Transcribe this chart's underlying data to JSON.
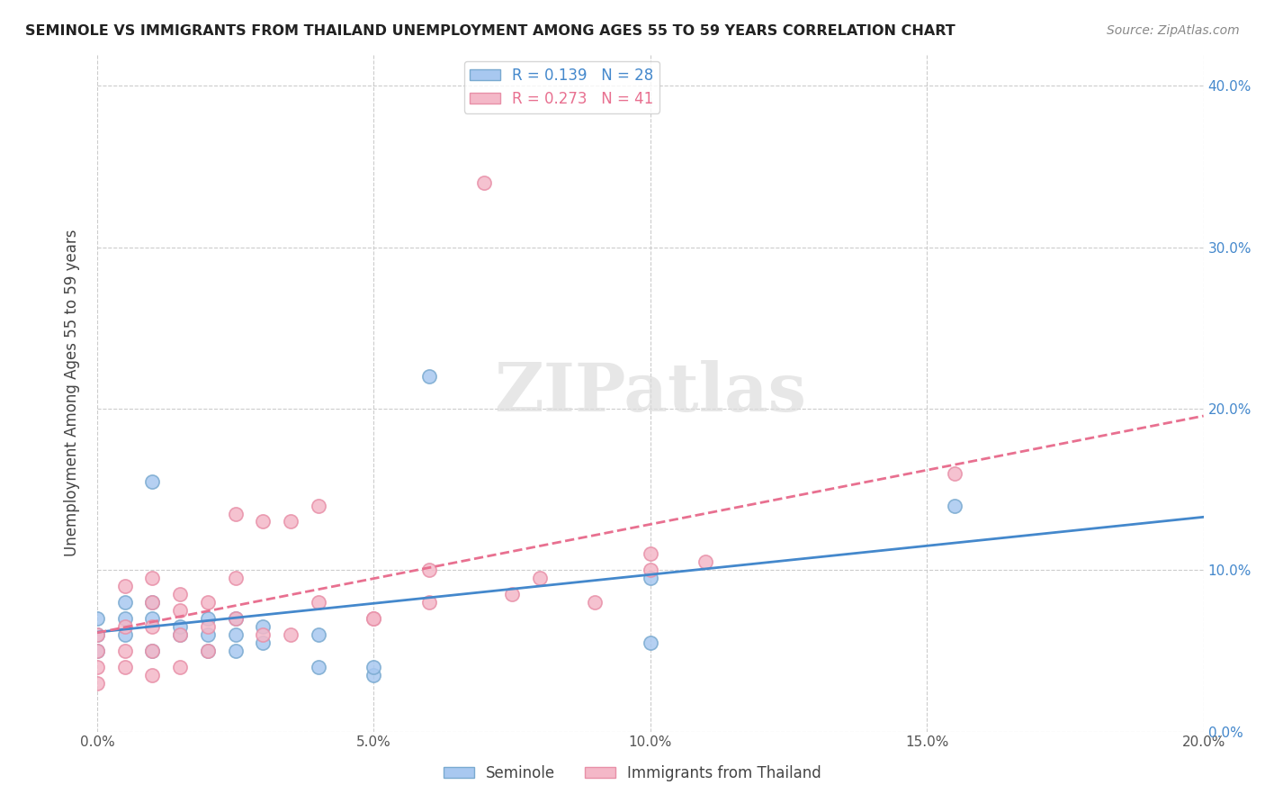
{
  "title": "SEMINOLE VS IMMIGRANTS FROM THAILAND UNEMPLOYMENT AMONG AGES 55 TO 59 YEARS CORRELATION CHART",
  "source": "Source: ZipAtlas.com",
  "xlabel": "",
  "ylabel": "Unemployment Among Ages 55 to 59 years",
  "xlim": [
    0.0,
    0.2
  ],
  "ylim": [
    0.0,
    0.42
  ],
  "xticks": [
    0.0,
    0.05,
    0.1,
    0.15,
    0.2
  ],
  "yticks": [
    0.0,
    0.1,
    0.2,
    0.3,
    0.4
  ],
  "xtick_labels": [
    "0.0%",
    "5.0%",
    "10.0%",
    "15.0%",
    "20.0%"
  ],
  "ytick_labels": [
    "0.0%",
    "10.0%",
    "20.0%",
    "30.0%",
    "40.0%"
  ],
  "background_color": "#ffffff",
  "grid_color": "#cccccc",
  "seminole_color": "#a8c8f0",
  "thailand_color": "#f4b8c8",
  "seminole_edge_color": "#7aaad0",
  "thailand_edge_color": "#e890a8",
  "seminole_line_color": "#4488cc",
  "thailand_line_color": "#e87090",
  "legend_seminole_label": "R = 0.139   N = 28",
  "legend_thailand_label": "R = 0.273   N = 41",
  "bottom_legend_seminole": "Seminole",
  "bottom_legend_thailand": "Immigrants from Thailand",
  "watermark_Z": "Z",
  "watermark_IP": "IP",
  "watermark_atlas": "atlas",
  "seminole_x": [
    0.0,
    0.0,
    0.0,
    0.005,
    0.005,
    0.005,
    0.01,
    0.01,
    0.01,
    0.01,
    0.015,
    0.015,
    0.02,
    0.02,
    0.02,
    0.025,
    0.025,
    0.025,
    0.03,
    0.03,
    0.04,
    0.04,
    0.05,
    0.05,
    0.06,
    0.1,
    0.1,
    0.155
  ],
  "seminole_y": [
    0.05,
    0.06,
    0.07,
    0.06,
    0.07,
    0.08,
    0.05,
    0.07,
    0.08,
    0.155,
    0.06,
    0.065,
    0.05,
    0.06,
    0.07,
    0.05,
    0.06,
    0.07,
    0.055,
    0.065,
    0.04,
    0.06,
    0.035,
    0.04,
    0.22,
    0.095,
    0.055,
    0.14
  ],
  "thailand_x": [
    0.0,
    0.0,
    0.0,
    0.0,
    0.005,
    0.005,
    0.005,
    0.005,
    0.01,
    0.01,
    0.01,
    0.01,
    0.01,
    0.015,
    0.015,
    0.015,
    0.015,
    0.02,
    0.02,
    0.02,
    0.025,
    0.025,
    0.025,
    0.03,
    0.03,
    0.035,
    0.035,
    0.04,
    0.04,
    0.05,
    0.05,
    0.06,
    0.06,
    0.07,
    0.075,
    0.08,
    0.09,
    0.1,
    0.1,
    0.11,
    0.155
  ],
  "thailand_y": [
    0.03,
    0.04,
    0.05,
    0.06,
    0.04,
    0.05,
    0.065,
    0.09,
    0.035,
    0.05,
    0.065,
    0.08,
    0.095,
    0.04,
    0.06,
    0.075,
    0.085,
    0.05,
    0.065,
    0.08,
    0.07,
    0.095,
    0.135,
    0.06,
    0.13,
    0.06,
    0.13,
    0.08,
    0.14,
    0.07,
    0.07,
    0.08,
    0.1,
    0.34,
    0.085,
    0.095,
    0.08,
    0.1,
    0.11,
    0.105,
    0.16
  ]
}
